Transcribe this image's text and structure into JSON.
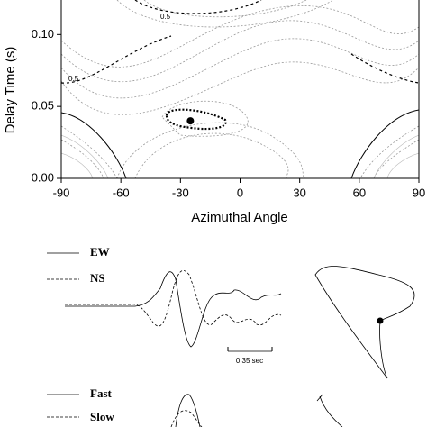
{
  "chart_data": {
    "type": "contour",
    "xlabel": "Azimuthal Angle",
    "ylabel": "Delay Time (s)",
    "xlim": [
      -90,
      90
    ],
    "ylim": [
      0,
      0.124
    ],
    "xticks": [
      -90,
      -60,
      -30,
      0,
      30,
      60,
      90
    ],
    "yticks": [
      {
        "value": 0,
        "label": "0.00"
      },
      {
        "value": 0.05,
        "label": "0.05"
      },
      {
        "value": 0.1,
        "label": "0.10"
      }
    ],
    "contour_labels": [
      0.5,
      0.5
    ],
    "marker": {
      "x": -25,
      "y": 0.04
    }
  },
  "waveforms": {
    "top_legend": [
      "EW",
      "NS"
    ],
    "bottom_legend": [
      "Fast",
      "Slow"
    ],
    "scale_label": "0.35 sec"
  }
}
